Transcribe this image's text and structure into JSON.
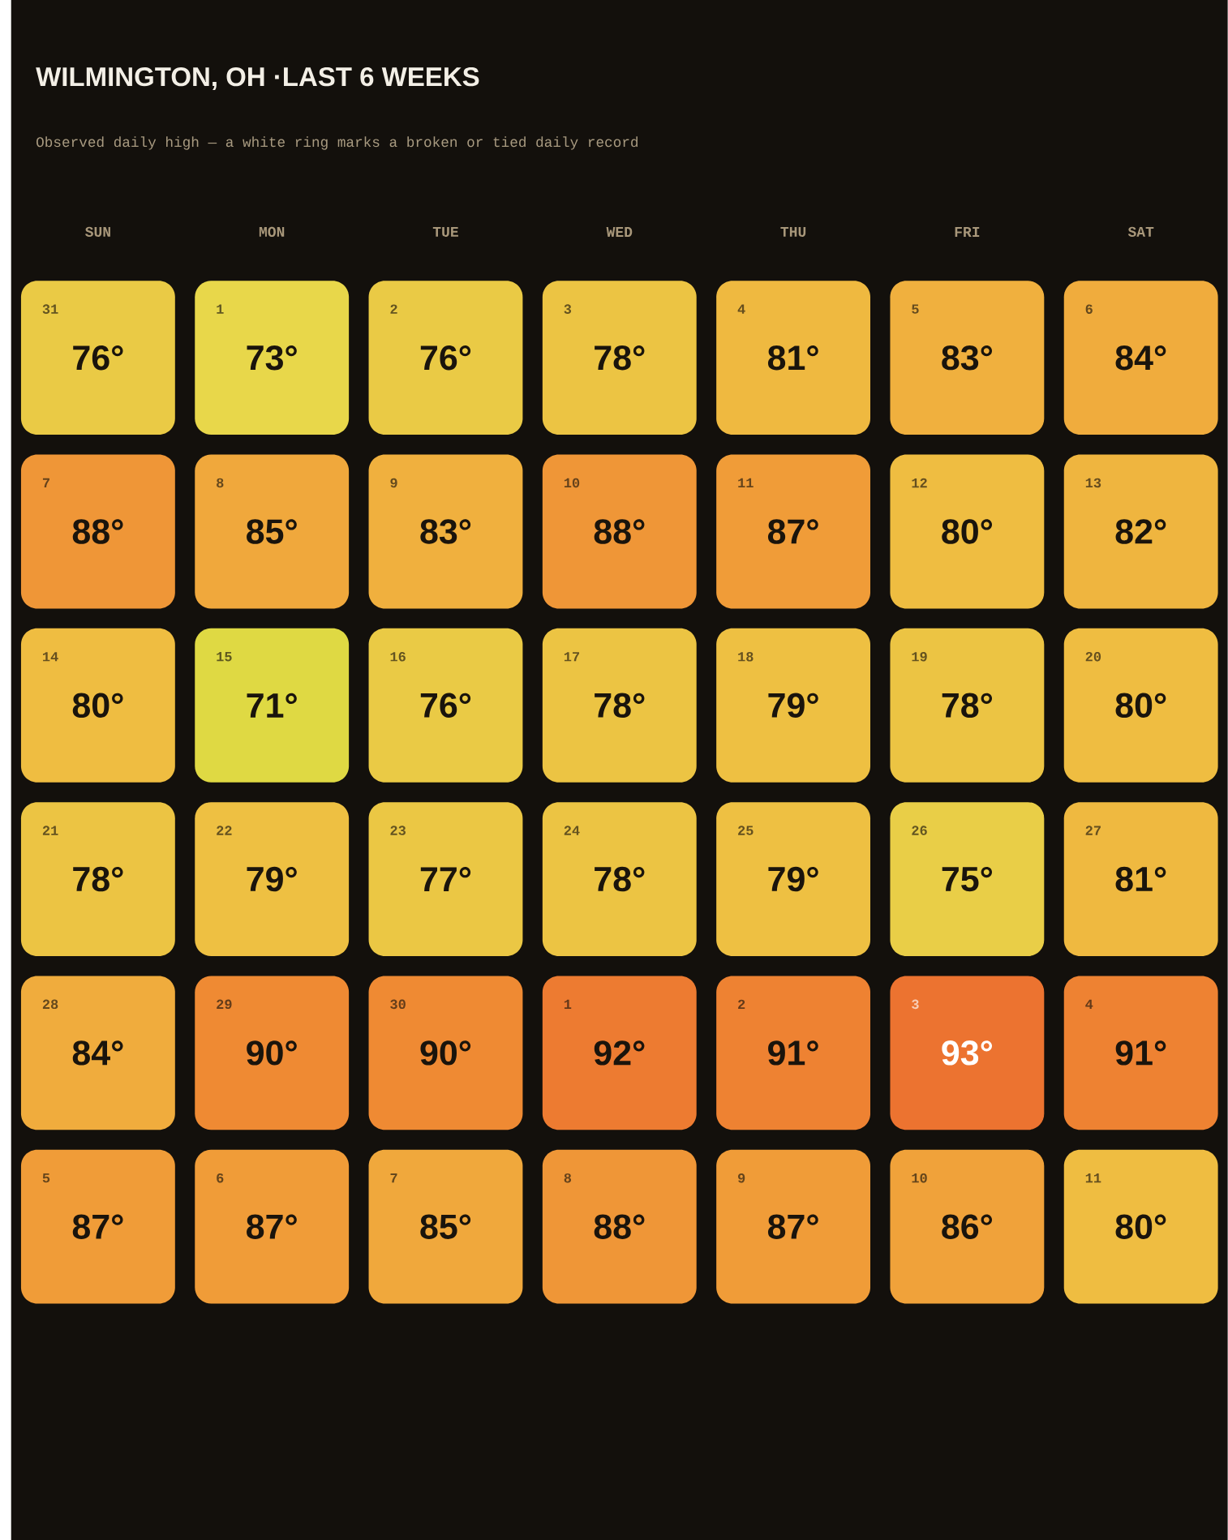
{
  "chart_data": {
    "type": "heatmap",
    "title": "WILMINGTON, OH ·LAST 6 WEEKS",
    "subtitle": "Observed daily high — a white ring marks a broken or tied daily record",
    "categories": [
      "SUN",
      "MON",
      "TUE",
      "WED",
      "THU",
      "FRI",
      "SAT"
    ],
    "y_categories": [
      null,
      null,
      null,
      null,
      null,
      null
    ],
    "cells": [
      [
        76,
        73,
        76,
        78,
        81,
        83,
        84
      ],
      [
        88,
        85,
        83,
        88,
        87,
        80,
        82
      ],
      [
        80,
        71,
        76,
        78,
        79,
        78,
        80
      ],
      [
        78,
        79,
        77,
        78,
        79,
        75,
        81
      ],
      [
        84,
        90,
        90,
        92,
        91,
        93,
        91
      ],
      [
        87,
        87,
        85,
        88,
        87,
        86,
        80
      ]
    ],
    "cell_labels": [
      [
        "76°",
        "73°",
        "76°",
        "78°",
        "81°",
        "83°",
        "84°"
      ],
      [
        "88°",
        "85°",
        "83°",
        "88°",
        "87°",
        "80°",
        "82°"
      ],
      [
        "80°",
        "71°",
        "76°",
        "78°",
        "79°",
        "78°",
        "80°"
      ],
      [
        "78°",
        "79°",
        "77°",
        "78°",
        "79°",
        "75°",
        "81°"
      ],
      [
        "84°",
        "90°",
        "90°",
        "92°",
        "91°",
        "93°",
        "91°"
      ],
      [
        "87°",
        "87°",
        "85°",
        "88°",
        "87°",
        "86°",
        "80°"
      ]
    ],
    "annotations": [
      "31",
      "1",
      "2",
      "3",
      "4",
      "5",
      "6",
      "7",
      "8",
      "9",
      "10",
      "11",
      "12",
      "13",
      "14",
      "15",
      "16",
      "17",
      "18",
      "19",
      "20",
      "21",
      "22",
      "23",
      "24",
      "25",
      "26",
      "27",
      "28",
      "29",
      "30",
      "1",
      "2",
      "3",
      "4",
      "5",
      "6",
      "7",
      "8",
      "9",
      "10",
      "11"
    ]
  }
}
